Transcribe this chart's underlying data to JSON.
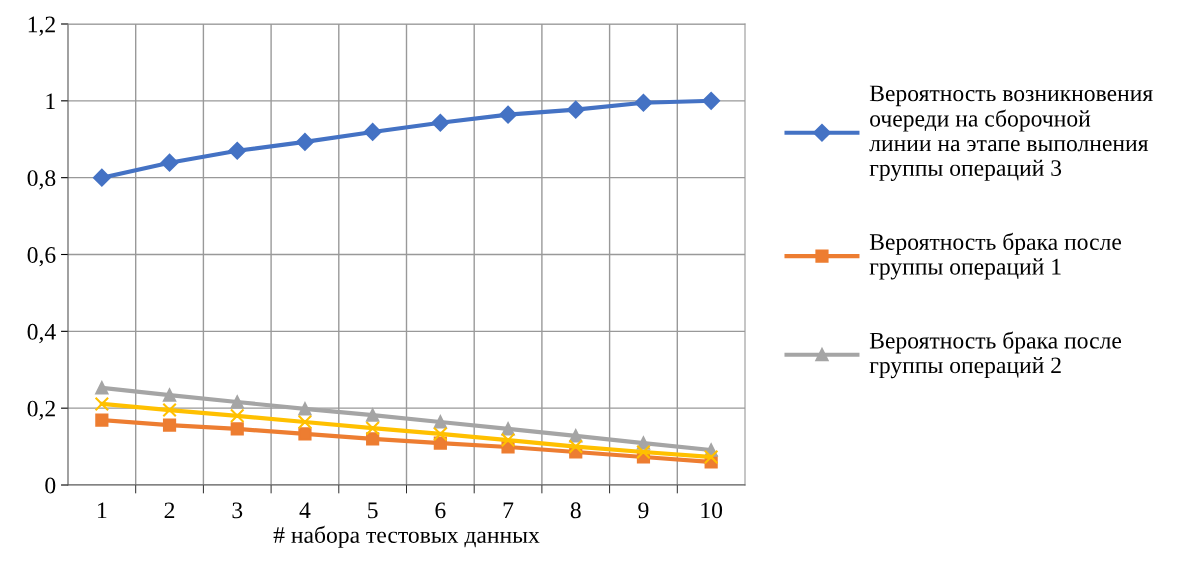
{
  "chart_data": {
    "type": "line",
    "xlabel": "# набора тестовых данных",
    "categories": [
      "1",
      "2",
      "3",
      "4",
      "5",
      "6",
      "7",
      "8",
      "9",
      "10"
    ],
    "ylim": [
      0,
      1.2
    ],
    "yticks": [
      {
        "value": 0,
        "label": "0"
      },
      {
        "value": 0.2,
        "label": "0,2"
      },
      {
        "value": 0.4,
        "label": "0,4"
      },
      {
        "value": 0.6,
        "label": "0,6"
      },
      {
        "value": 0.8,
        "label": "0,8"
      },
      {
        "value": 1,
        "label": "1"
      },
      {
        "value": 1.2,
        "label": "1,2"
      }
    ],
    "grid": true,
    "legend": "right",
    "series": [
      {
        "name": "Вероятность возникновения\nочереди на сборочной\nлинии на этапе выполнения\nгруппы операций 3",
        "color": "#4472c4",
        "marker": "diamond",
        "values": [
          0.8,
          0.839,
          0.87,
          0.893,
          0.919,
          0.943,
          0.964,
          0.977,
          0.995,
          1.0
        ]
      },
      {
        "name": "Вероятность брака после\nгруппы операций 1",
        "color": "#ed7d31",
        "marker": "square",
        "values": [
          0.169,
          0.156,
          0.146,
          0.133,
          0.12,
          0.109,
          0.099,
          0.086,
          0.073,
          0.06
        ]
      },
      {
        "name": "Вероятность брака после\nгруппы операций 2",
        "color": "#a5a5a5",
        "marker": "triangle",
        "values": [
          0.253,
          0.234,
          0.216,
          0.198,
          0.182,
          0.164,
          0.146,
          0.128,
          0.109,
          0.091
        ]
      },
      {
        "color": "#ffc000",
        "marker": "cross",
        "values": [
          0.211,
          0.195,
          0.18,
          0.164,
          0.148,
          0.133,
          0.117,
          0.1,
          0.086,
          0.073
        ]
      }
    ]
  }
}
